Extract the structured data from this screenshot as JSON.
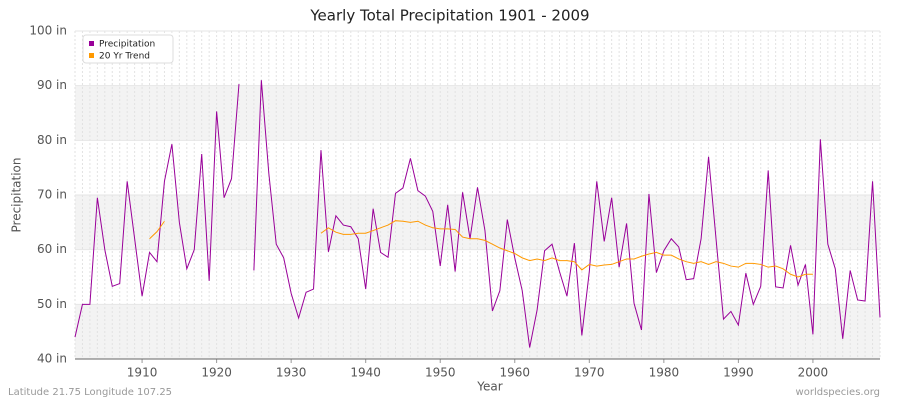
{
  "chart_data": {
    "type": "line",
    "title": "Yearly Total Precipitation 1901 - 2009",
    "x_label": "Year",
    "y_label": "Precipitation",
    "footer_left": "Latitude 21.75 Longitude 107.25",
    "footer_right": "worldspecies.org",
    "legend": "top-left",
    "grid": true,
    "xlim": [
      1901,
      2009
    ],
    "xticks": [
      1910,
      1920,
      1930,
      1940,
      1950,
      1960,
      1970,
      1980,
      1990,
      2000
    ],
    "ylim": [
      40,
      100
    ],
    "yticks": [
      {
        "value": 40,
        "label": "40 in"
      },
      {
        "value": 50,
        "label": "50 in"
      },
      {
        "value": 60,
        "label": "60 in"
      },
      {
        "value": 70,
        "label": "70 in"
      },
      {
        "value": 80,
        "label": "80 in"
      },
      {
        "value": 90,
        "label": "90 in"
      },
      {
        "value": 100,
        "label": "100 in"
      }
    ],
    "x": [
      1901,
      1902,
      1903,
      1904,
      1905,
      1906,
      1907,
      1908,
      1909,
      1910,
      1911,
      1912,
      1913,
      1914,
      1915,
      1916,
      1917,
      1918,
      1919,
      1920,
      1921,
      1922,
      1923,
      1924,
      1925,
      1926,
      1927,
      1928,
      1929,
      1930,
      1931,
      1932,
      1933,
      1934,
      1935,
      1936,
      1937,
      1938,
      1939,
      1940,
      1941,
      1942,
      1943,
      1944,
      1945,
      1946,
      1947,
      1948,
      1949,
      1950,
      1951,
      1952,
      1953,
      1954,
      1955,
      1956,
      1957,
      1958,
      1959,
      1960,
      1961,
      1962,
      1963,
      1964,
      1965,
      1966,
      1967,
      1968,
      1969,
      1970,
      1971,
      1972,
      1973,
      1974,
      1975,
      1976,
      1977,
      1978,
      1979,
      1980,
      1981,
      1982,
      1983,
      1984,
      1985,
      1986,
      1987,
      1988,
      1989,
      1990,
      1991,
      1992,
      1993,
      1994,
      1995,
      1996,
      1997,
      1998,
      1999,
      2000,
      2001,
      2002,
      2003,
      2004,
      2005,
      2006,
      2007,
      2008,
      2009
    ],
    "series": [
      {
        "name": "Precipitation",
        "color": "#990099",
        "values": [
          44,
          50,
          50,
          69.5,
          60,
          53.3,
          53.8,
          72.5,
          62,
          51.5,
          59.5,
          57.8,
          72.5,
          79.3,
          65,
          56.5,
          60,
          77.5,
          54.3,
          85.3,
          69.5,
          73,
          90.3,
          null,
          56.2,
          91,
          74,
          61,
          58.5,
          52,
          47.5,
          52.2,
          52.8,
          78.2,
          59.6,
          66.2,
          64.5,
          64.2,
          62,
          52.8,
          67.5,
          59.5,
          58.6,
          70.3,
          71.3,
          76.7,
          70.8,
          69.8,
          67,
          57,
          68.2,
          56,
          70.5,
          62,
          71.4,
          63.5,
          48.8,
          52.5,
          65.5,
          58.5,
          52.5,
          42.1,
          49,
          59.8,
          61,
          56,
          51.5,
          61.2,
          44.3,
          56,
          72.5,
          61.5,
          69.5,
          56.8,
          64.8,
          50.2,
          45.3,
          70.2,
          55.8,
          59.8,
          62,
          60.5,
          54.5,
          54.7,
          62,
          77,
          62,
          47.3,
          48.7,
          46.2,
          55.7,
          50,
          53.3,
          74.5,
          53.2,
          53,
          60.8,
          53.5,
          57.3,
          44.5,
          80.2,
          61,
          56.5,
          43.7,
          56.2,
          50.8,
          50.6,
          72.5,
          47.6
        ]
      },
      {
        "name": "20 Yr Trend",
        "color": "#ff9900",
        "values": [
          null,
          null,
          null,
          null,
          null,
          null,
          null,
          null,
          null,
          null,
          62,
          63.3,
          65.2,
          null,
          null,
          null,
          null,
          null,
          null,
          null,
          null,
          null,
          null,
          null,
          null,
          null,
          null,
          null,
          null,
          null,
          null,
          null,
          null,
          63,
          64,
          63.2,
          62.8,
          62.8,
          63,
          63,
          63.5,
          64,
          64.5,
          65.3,
          65.2,
          65,
          65.2,
          64.5,
          64,
          63.8,
          63.8,
          63.7,
          62.3,
          62,
          62,
          61.7,
          61,
          60.3,
          59.8,
          59.3,
          58.5,
          58,
          58.3,
          58,
          58.5,
          58,
          58,
          57.8,
          56.3,
          57.3,
          57,
          57.2,
          57.3,
          57.8,
          58.3,
          58.3,
          58.8,
          59.2,
          59.5,
          59,
          59,
          58.3,
          57.8,
          57.5,
          57.8,
          57.3,
          57.8,
          57.5,
          57,
          56.8,
          57.5,
          57.5,
          57.3,
          56.8,
          57,
          56.5,
          55.5,
          55,
          55.5,
          55.5,
          null,
          null,
          null,
          null,
          null,
          null,
          null,
          null,
          null
        ]
      }
    ]
  }
}
